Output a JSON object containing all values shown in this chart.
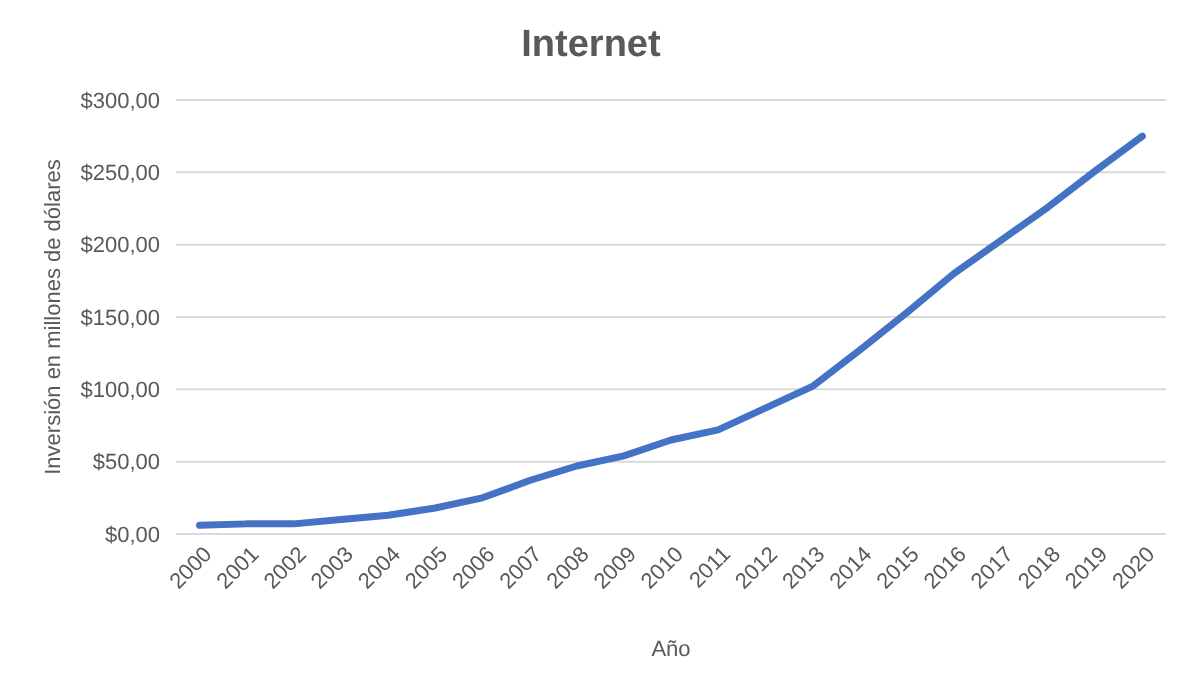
{
  "chart_data": {
    "type": "line",
    "title": "Internet",
    "xlabel": "Año",
    "ylabel": "Inversión en millones de dólares",
    "categories": [
      "2000",
      "2001",
      "2002",
      "2003",
      "2004",
      "2005",
      "2006",
      "2007",
      "2008",
      "2009",
      "2010",
      "2011",
      "2012",
      "2013",
      "2014",
      "2015",
      "2016",
      "2017",
      "2018",
      "2019",
      "2020"
    ],
    "series": [
      {
        "color": "#4472c4",
        "values": [
          6,
          7,
          7,
          10,
          13,
          18,
          25,
          37,
          47,
          54,
          65,
          72,
          87,
          102,
          127,
          153,
          180,
          203,
          226,
          251,
          275
        ]
      }
    ],
    "ylim": [
      0,
      300
    ],
    "yticks": [
      {
        "value": 0,
        "label": "$0,00"
      },
      {
        "value": 50,
        "label": "$50,00"
      },
      {
        "value": 100,
        "label": "$100,00"
      },
      {
        "value": 150,
        "label": "$150,00"
      },
      {
        "value": 200,
        "label": "$200,00"
      },
      {
        "value": 250,
        "label": "$250,00"
      },
      {
        "value": 300,
        "label": "$300,00"
      }
    ],
    "grid": "y",
    "marker": "none",
    "line_style": "solid"
  }
}
